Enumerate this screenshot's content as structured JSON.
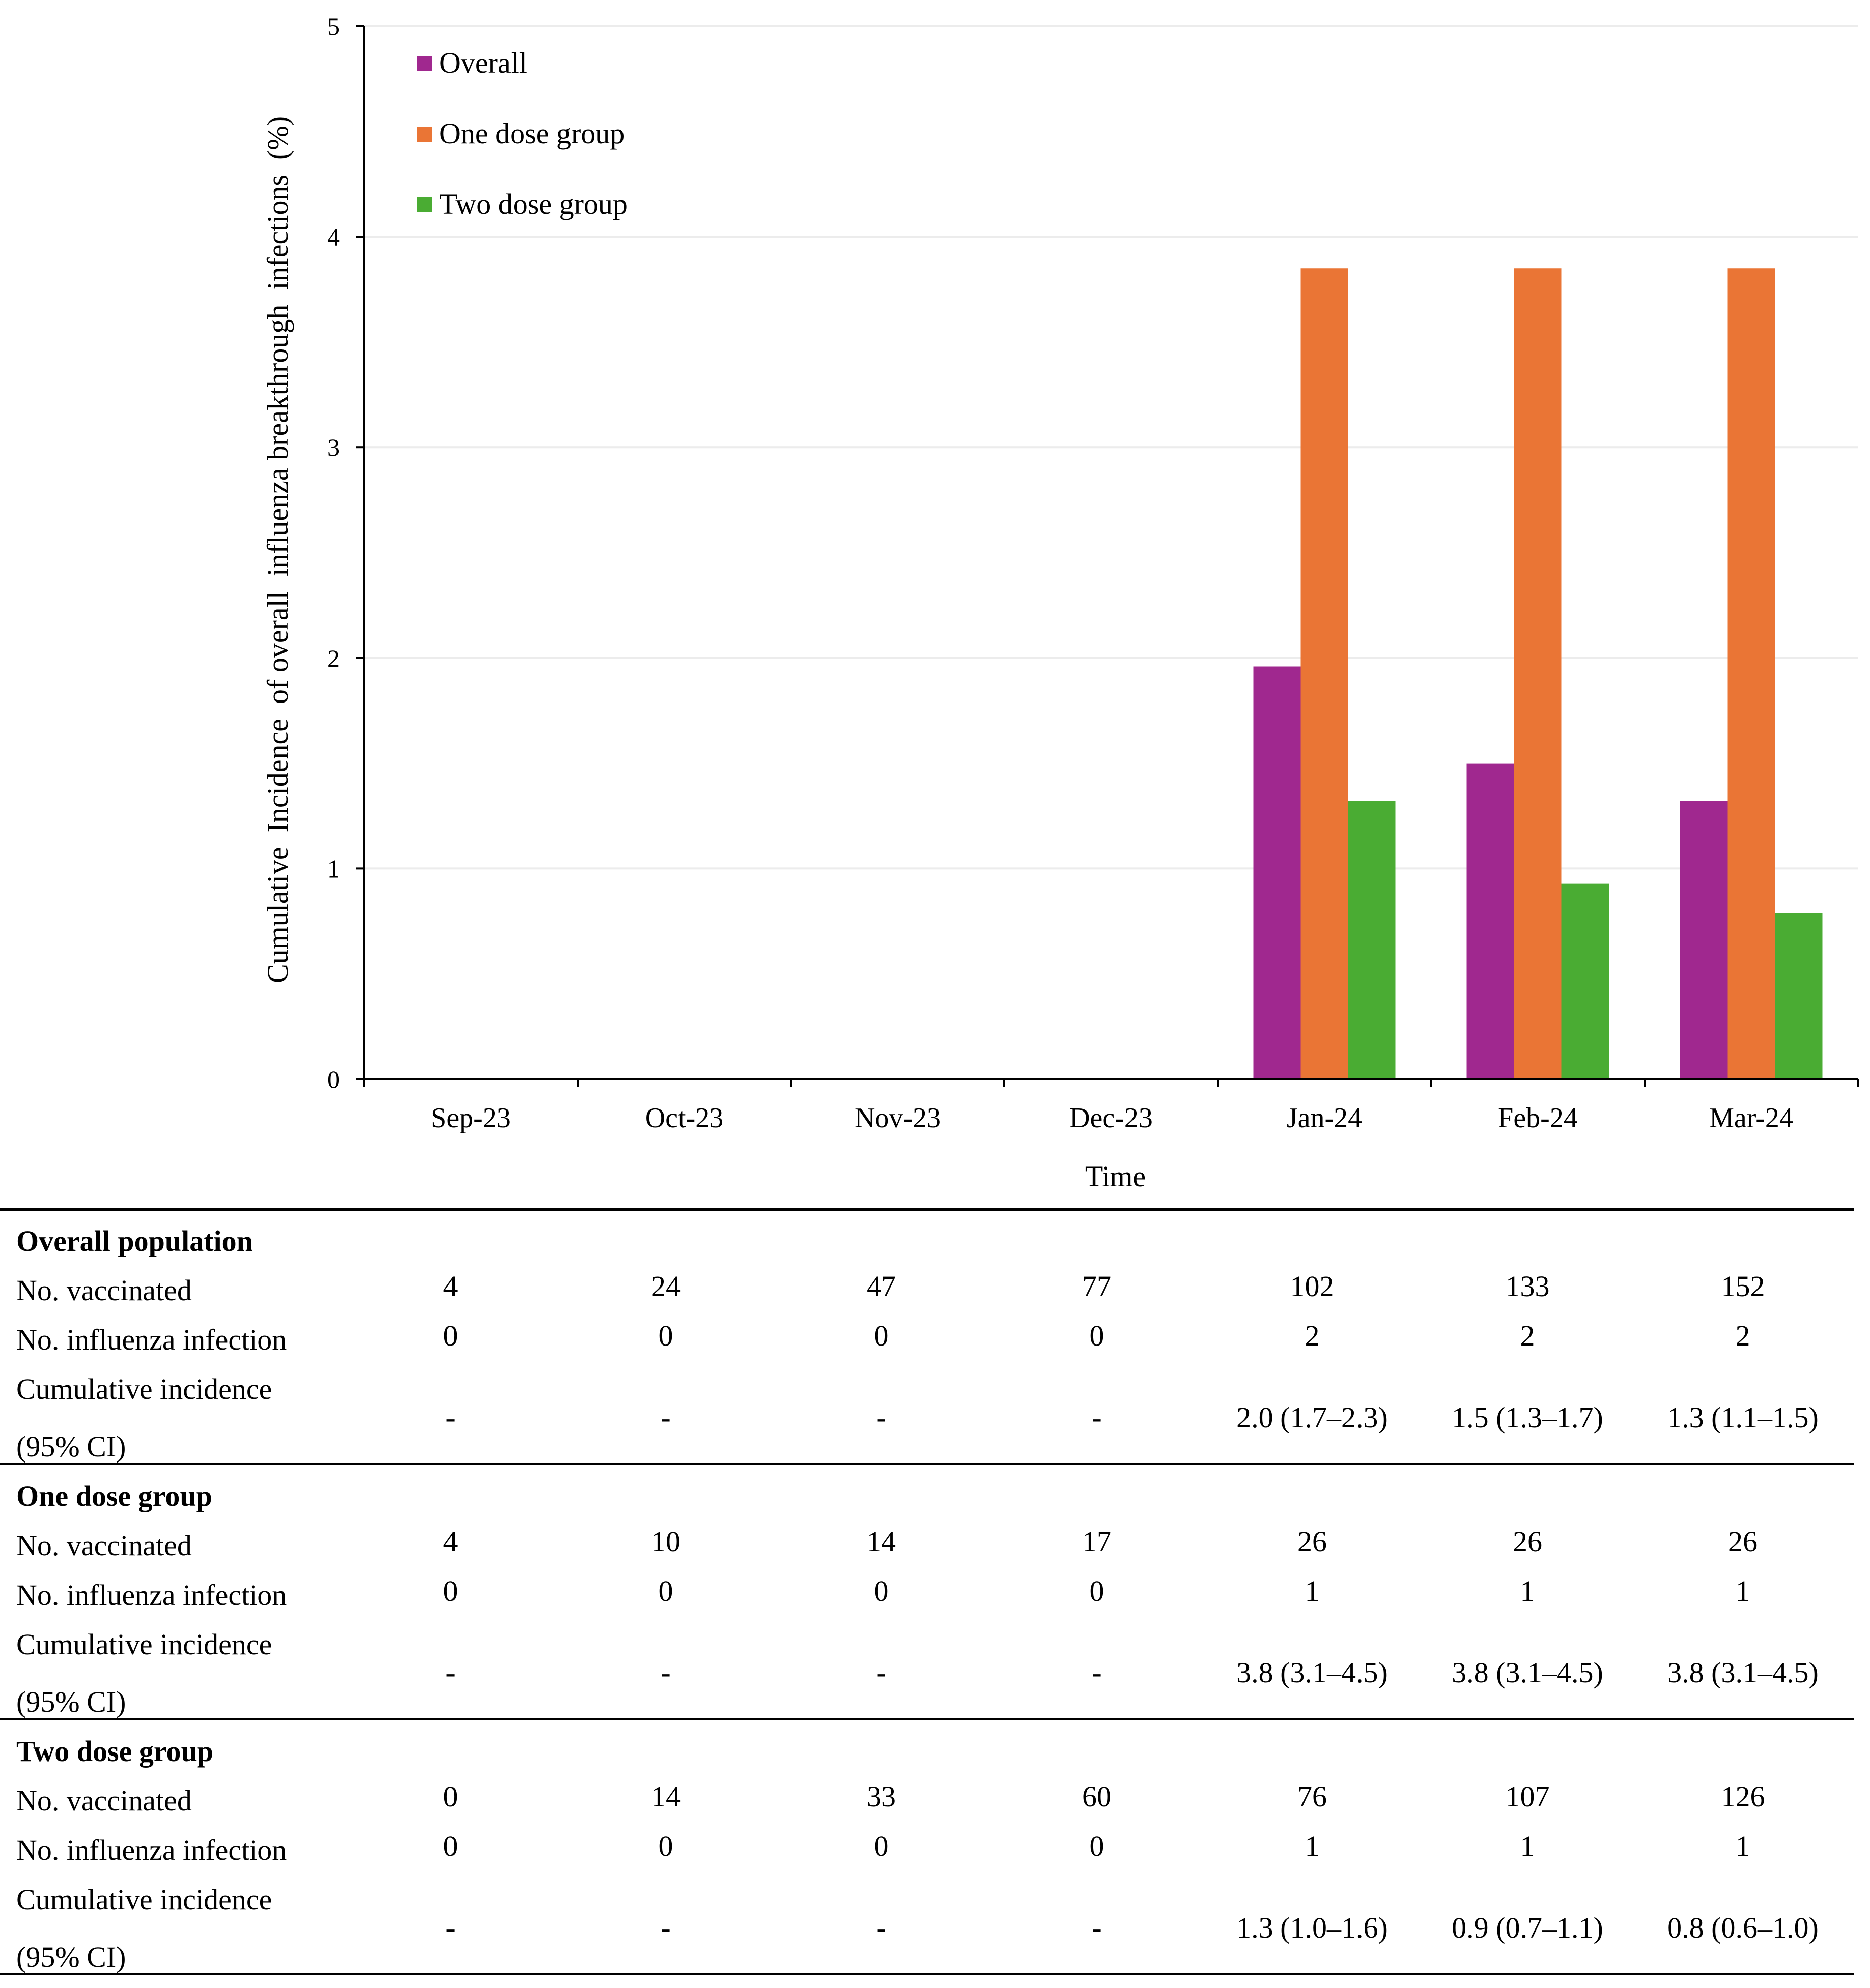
{
  "chart_data": {
    "type": "bar",
    "categories": [
      "Sep-23",
      "Oct-23",
      "Nov-23",
      "Dec-23",
      "Jan-24",
      "Feb-24",
      "Mar-24"
    ],
    "series": [
      {
        "name": "Overall",
        "color": "#a0288f",
        "values": [
          0,
          0,
          0,
          0,
          1.96,
          1.5,
          1.32
        ]
      },
      {
        "name": "One dose group",
        "color": "#ea7535",
        "values": [
          0,
          0,
          0,
          0,
          3.85,
          3.85,
          3.85
        ]
      },
      {
        "name": "Two dose group",
        "color": "#4aac33",
        "values": [
          0,
          0,
          0,
          0,
          1.32,
          0.93,
          0.79
        ]
      }
    ],
    "xlabel": "Time",
    "ylabel": "Cumulative  Incidence  of overall  influenza breakthrough  infections  (%)",
    "ylim": [
      0,
      5
    ],
    "yticks": [
      "0",
      "1",
      "2",
      "3",
      "4",
      "5"
    ],
    "grid": true,
    "legend": "top-left"
  },
  "table": {
    "sections": [
      {
        "title": "Overall population",
        "rows": [
          {
            "label": "No. vaccinated",
            "values": [
              "4",
              "24",
              "47",
              "77",
              "102",
              "133",
              "152"
            ]
          },
          {
            "label": "No. influenza infection",
            "values": [
              "0",
              "0",
              "0",
              "0",
              "2",
              "2",
              "2"
            ]
          },
          {
            "label": "Cumulative incidence",
            "label2": "(95% CI)",
            "values": [
              "-",
              "-",
              "-",
              "-",
              "2.0 (1.7–2.3)",
              "1.5 (1.3–1.7)",
              "1.3 (1.1–1.5)"
            ]
          }
        ]
      },
      {
        "title": "One dose group",
        "rows": [
          {
            "label": "No. vaccinated",
            "values": [
              "4",
              "10",
              "14",
              "17",
              "26",
              "26",
              "26"
            ]
          },
          {
            "label": "No. influenza infection",
            "values": [
              "0",
              "0",
              "0",
              "0",
              "1",
              "1",
              "1"
            ]
          },
          {
            "label": "Cumulative incidence",
            "label2": "(95% CI)",
            "values": [
              "-",
              "-",
              "-",
              "-",
              "3.8 (3.1–4.5)",
              "3.8 (3.1–4.5)",
              "3.8 (3.1–4.5)"
            ]
          }
        ]
      },
      {
        "title": "Two dose group",
        "rows": [
          {
            "label": "No. vaccinated",
            "values": [
              "0",
              "14",
              "33",
              "60",
              "76",
              "107",
              "126"
            ]
          },
          {
            "label": "No. influenza infection",
            "values": [
              "0",
              "0",
              "0",
              "0",
              "1",
              "1",
              "1"
            ]
          },
          {
            "label": "Cumulative incidence",
            "label2": "(95% CI)",
            "values": [
              "-",
              "-",
              "-",
              "-",
              "1.3 (1.0–1.6)",
              "0.9 (0.7–1.1)",
              "0.8 (0.6–1.0)"
            ]
          }
        ]
      }
    ]
  }
}
